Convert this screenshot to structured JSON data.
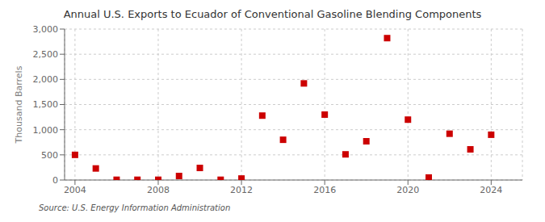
{
  "chart_data": {
    "type": "scatter",
    "title": "Annual U.S. Exports to Ecuador of Conventional Gasoline Blending Components",
    "ylabel": "Thousand Barrels",
    "annotations": [
      "Source: U.S. Energy Information Administration"
    ],
    "x": [
      2004,
      2005,
      2006,
      2007,
      2008,
      2009,
      2010,
      2011,
      2012,
      2013,
      2014,
      2015,
      2016,
      2017,
      2018,
      2019,
      2020,
      2021,
      2022,
      2023,
      2024
    ],
    "values": [
      500,
      230,
      5,
      5,
      5,
      80,
      240,
      5,
      30,
      1280,
      800,
      1920,
      1300,
      510,
      770,
      2820,
      1200,
      50,
      920,
      610,
      900
    ],
    "color": "#cc0000",
    "marker": "square",
    "xlim": [
      2003.5,
      2025.5
    ],
    "xticks": [
      2004,
      2008,
      2012,
      2016,
      2020,
      2024
    ],
    "ylim": [
      0,
      3000
    ],
    "yticks": [
      0,
      500,
      {
        "value": 1000,
        "label": "1,000"
      },
      {
        "value": 1500,
        "label": "1,500"
      },
      {
        "value": 2000,
        "label": "2,000"
      },
      {
        "value": 2500,
        "label": "2,500"
      },
      {
        "value": 3000,
        "label": "3,000"
      }
    ],
    "grid": true
  }
}
